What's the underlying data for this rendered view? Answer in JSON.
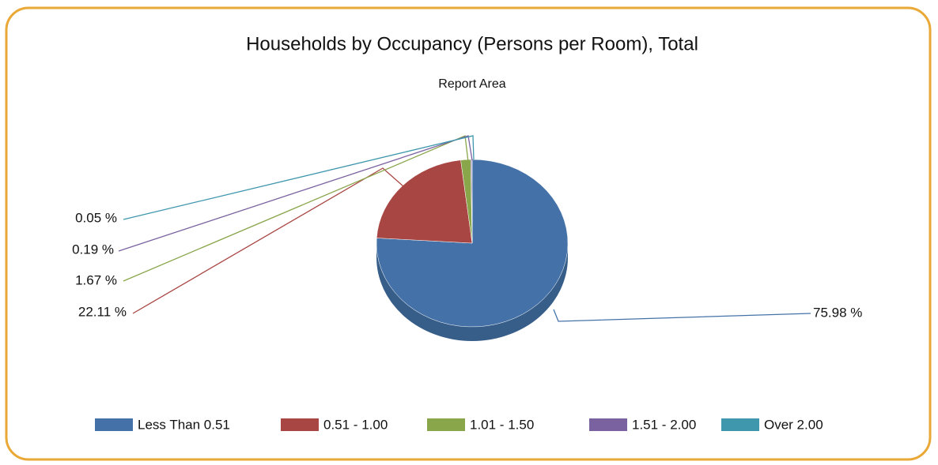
{
  "chart_data": {
    "type": "pie",
    "title": "Households by Occupancy (Persons per Room), Total",
    "subtitle": "Report Area",
    "categories": [
      "Less Than 0.51",
      "0.51 - 1.00",
      "1.01 - 1.50",
      "1.51 - 2.00",
      "Over 2.00"
    ],
    "values": [
      75.98,
      22.11,
      1.67,
      0.19,
      0.05
    ],
    "value_labels": [
      "75.98 %",
      "22.11 %",
      "1.67 %",
      "0.19 %",
      "0.05 %"
    ],
    "colors": [
      "#4472a8",
      "#a84643",
      "#8aa64b",
      "#7a62a0",
      "#3f97ae"
    ],
    "legend": "bottom"
  }
}
